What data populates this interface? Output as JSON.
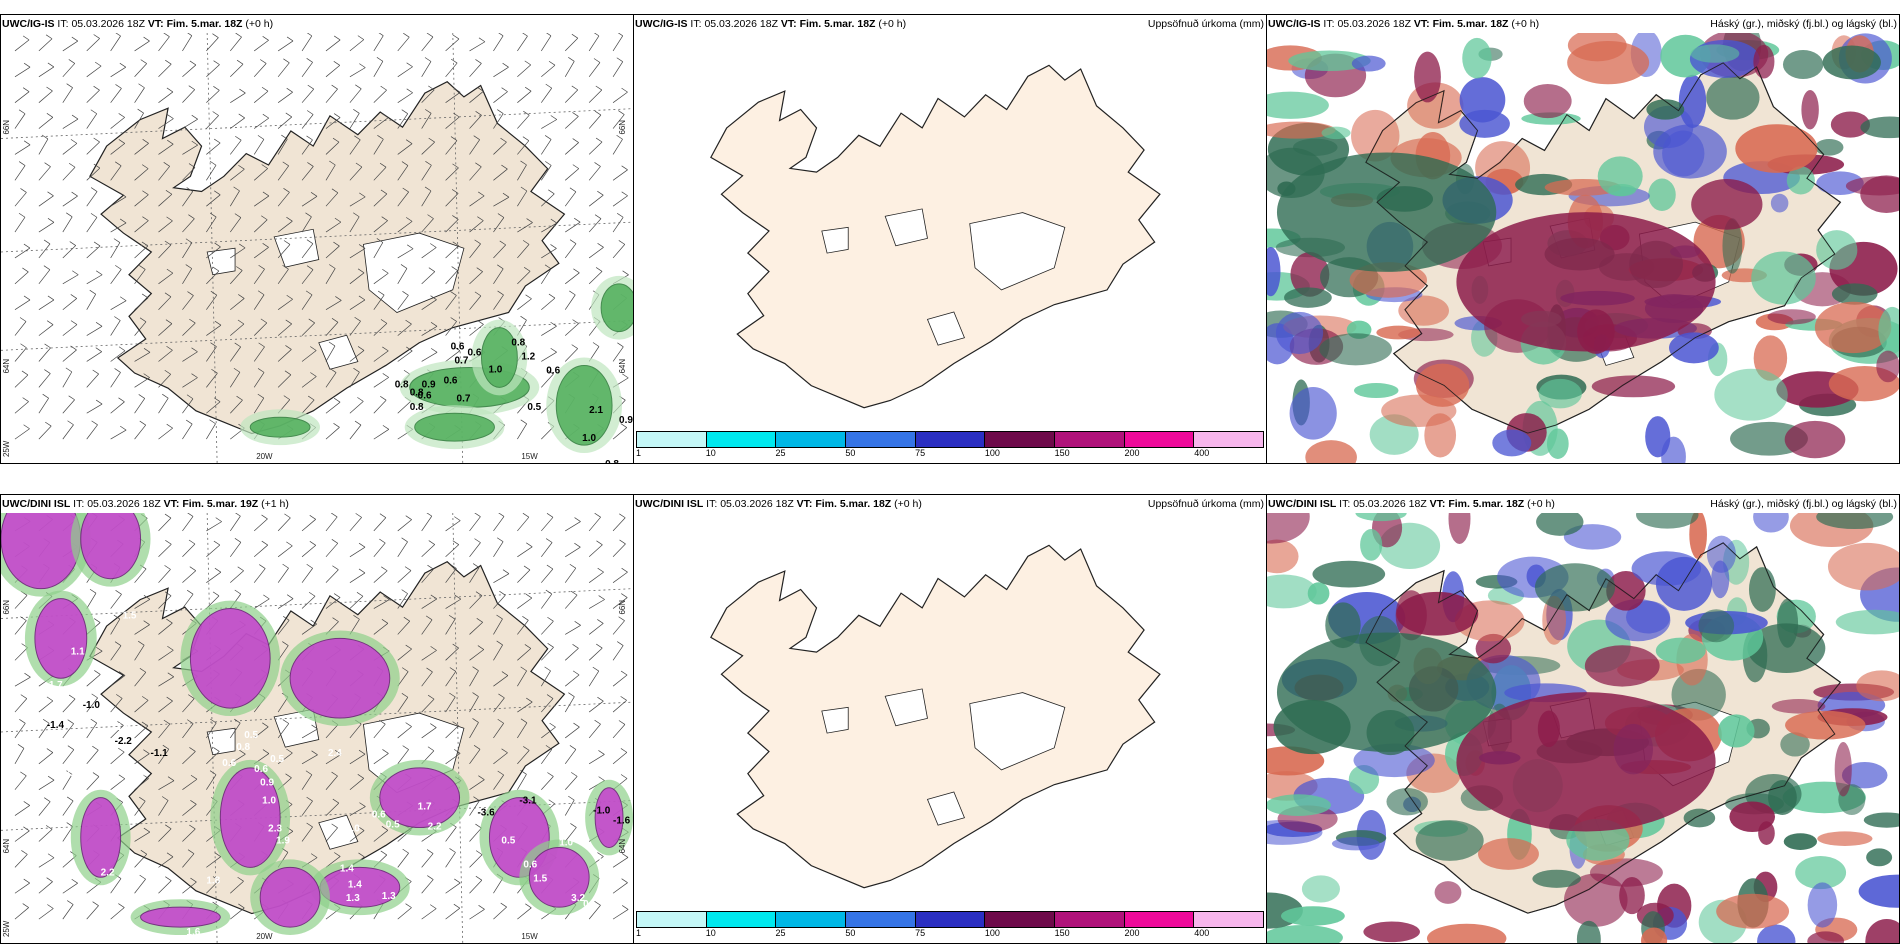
{
  "panels": [
    {
      "model": "UWC/IG-IS",
      "it_prefix": "IT:",
      "it_value": "05.03.2026 18Z",
      "vt_label": "VT: Fim. 5.mar. 18Z",
      "offset": "(+0 h)",
      "right_title": "",
      "axis_labels": [
        "66N",
        "66N",
        "64N",
        "64N",
        "25W",
        "20W",
        "15W"
      ],
      "values": [
        {
          "text": "0.8",
          "color": "#000000"
        },
        {
          "text": "0.8",
          "color": "#000000"
        },
        {
          "text": "0.7",
          "color": "#000000"
        },
        {
          "text": "1.2",
          "color": "#000000"
        },
        {
          "text": "0.6",
          "color": "#000000"
        },
        {
          "text": "0.6",
          "color": "#000000"
        },
        {
          "text": "1.0",
          "color": "#000000"
        },
        {
          "text": "0.6",
          "color": "#000000"
        },
        {
          "text": "0.8",
          "color": "#000000"
        },
        {
          "text": "0.9",
          "color": "#000000"
        },
        {
          "text": "0.6",
          "color": "#000000"
        },
        {
          "text": "0.7",
          "color": "#000000"
        },
        {
          "text": "0.8",
          "color": "#000000"
        },
        {
          "text": "0.6",
          "color": "#000000"
        },
        {
          "text": "0.5",
          "color": "#000000"
        },
        {
          "text": "2.1",
          "color": "#000000"
        },
        {
          "text": "0.9",
          "color": "#000000"
        },
        {
          "text": "1.0",
          "color": "#000000"
        },
        {
          "text": "0.8",
          "color": "#000000"
        }
      ]
    },
    {
      "model": "UWC/IG-IS",
      "it_prefix": "IT:",
      "it_value": "05.03.2026 18Z",
      "vt_label": "VT: Fim. 5.mar. 18Z",
      "offset": "(+0 h)",
      "right_title": "Uppsöfnuð úrkoma (mm)"
    },
    {
      "model": "UWC/IG-IS",
      "it_prefix": "IT:",
      "it_value": "05.03.2026 18Z",
      "vt_label": "VT: Fim. 5.mar. 18Z",
      "offset": "(+0 h)",
      "right_title": "Háský (gr.), miðský (fj.bl.) og lágský (bl.)"
    },
    {
      "model": "UWC/DINI ISL",
      "it_prefix": "IT:",
      "it_value": "05.03.2026 18Z",
      "vt_label": "VT: Fim. 5.mar. 19Z",
      "offset": "(+1 h)",
      "right_title": "",
      "axis_labels": [
        "66N",
        "66N",
        "64N",
        "64N",
        "25W",
        "20W",
        "15W"
      ],
      "values": [
        {
          "text": "1.5",
          "color": "#ffffff"
        },
        {
          "text": "1.1",
          "color": "#ffffff"
        },
        {
          "text": "1.7",
          "color": "#ffffff"
        },
        {
          "text": "-1.0",
          "color": "#000000"
        },
        {
          "text": "-1.4",
          "color": "#000000"
        },
        {
          "text": "1.9",
          "color": "#ffffff"
        },
        {
          "text": "-2.2",
          "color": "#000000"
        },
        {
          "text": "0.9",
          "color": "#ffffff"
        },
        {
          "text": "-1.1",
          "color": "#000000"
        },
        {
          "text": "3.0",
          "color": "#ffffff"
        },
        {
          "text": "2.4",
          "color": "#ffffff"
        },
        {
          "text": "0.6",
          "color": "#ffffff"
        },
        {
          "text": "0.5",
          "color": "#ffffff"
        },
        {
          "text": "0.8",
          "color": "#ffffff"
        },
        {
          "text": "2.4",
          "color": "#ffffff"
        },
        {
          "text": "0.6",
          "color": "#ffffff"
        },
        {
          "text": "0.5",
          "color": "#ffffff"
        },
        {
          "text": "0.9",
          "color": "#ffffff"
        },
        {
          "text": "1.0",
          "color": "#ffffff"
        },
        {
          "text": "1.7",
          "color": "#ffffff"
        },
        {
          "text": "2.2",
          "color": "#ffffff"
        },
        {
          "text": "-3.6",
          "color": "#000000"
        },
        {
          "text": "-3.1",
          "color": "#000000"
        },
        {
          "text": "2.3",
          "color": "#ffffff"
        },
        {
          "text": "1.9",
          "color": "#ffffff"
        },
        {
          "text": "0.6",
          "color": "#ffffff"
        },
        {
          "text": "0.5",
          "color": "#ffffff"
        },
        {
          "text": "1.0",
          "color": "#ffffff"
        },
        {
          "text": "1.4",
          "color": "#ffffff"
        },
        {
          "text": "1.4",
          "color": "#ffffff"
        },
        {
          "text": "1.3",
          "color": "#ffffff"
        },
        {
          "text": "1.3",
          "color": "#ffffff"
        },
        {
          "text": "2.2",
          "color": "#ffffff"
        },
        {
          "text": "1.6",
          "color": "#ffffff"
        },
        {
          "text": "0.4",
          "color": "#ffffff"
        },
        {
          "text": "-1.0",
          "color": "#000000"
        },
        {
          "text": "-1.6",
          "color": "#000000"
        },
        {
          "text": "0.5",
          "color": "#ffffff"
        },
        {
          "text": "0.6",
          "color": "#ffffff"
        },
        {
          "text": "1.5",
          "color": "#ffffff"
        },
        {
          "text": "1.0",
          "color": "#ffffff"
        },
        {
          "text": "1.2",
          "color": "#ffffff"
        },
        {
          "text": "3.2",
          "color": "#ffffff"
        },
        {
          "text": "0.5",
          "color": "#ffffff"
        },
        {
          "text": "1.8",
          "color": "#ffffff"
        }
      ]
    },
    {
      "model": "UWC/DINI ISL",
      "it_prefix": "IT:",
      "it_value": "05.03.2026 18Z",
      "vt_label": "VT: Fim. 5.mar. 18Z",
      "offset": "(+0 h)",
      "right_title": "Uppsöfnuð úrkoma (mm)"
    },
    {
      "model": "UWC/DINI ISL",
      "it_prefix": "IT:",
      "it_value": "05.03.2026 18Z",
      "vt_label": "VT: Fim. 5.mar. 18Z",
      "offset": "(+0 h)",
      "right_title": "Háský (gr.), miðský (fj.bl.) og lágský (bl.)"
    }
  ],
  "colorbar": {
    "labels": [
      "1",
      "10",
      "25",
      "50",
      "75",
      "100",
      "150",
      "200",
      "400"
    ],
    "colors": [
      "#c4f7f7",
      "#00e8ee",
      "#00b8e6",
      "#3574e6",
      "#2b2fc2",
      "#6e0a4a",
      "#b0127a",
      "#ee0a9a",
      "#f7b6ec"
    ]
  },
  "colors": {
    "land_tan": "#f0e4d4",
    "land_cream": "#fdf0e2",
    "precip_green": "#4fae5a",
    "precip_magenta": "#c73fd0",
    "cloud_high": "#2e6b52",
    "cloud_mid": "#8c1c4a",
    "cloud_low": "#4a55d2"
  }
}
